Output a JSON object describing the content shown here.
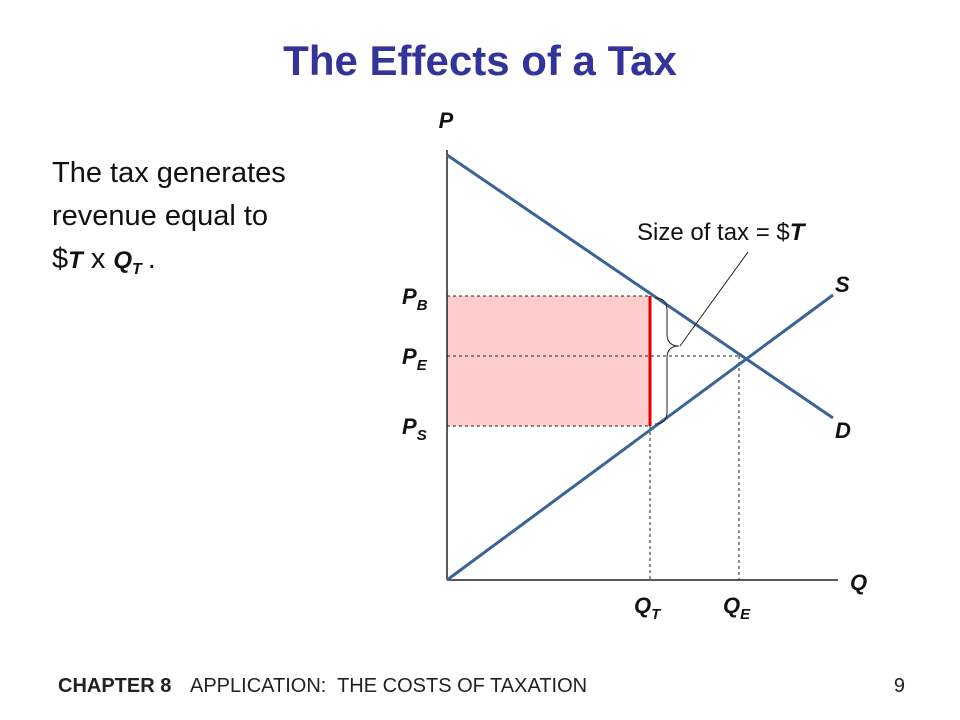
{
  "title": "The Effects of a Tax",
  "body": {
    "lines": [
      "The tax generates",
      "revenue equal to"
    ],
    "formula": {
      "currency": "$",
      "tax": "T",
      "times": "x",
      "quantity": "Q",
      "quantity_sub": "T",
      "end": "."
    }
  },
  "diagram": {
    "y_axis": "P",
    "x_axis": "Q",
    "supply": "S",
    "demand": "D",
    "price_labels": [
      {
        "main": "P",
        "sub": "B"
      },
      {
        "main": "P",
        "sub": "E"
      },
      {
        "main": "P",
        "sub": "S"
      }
    ],
    "quantity_labels": [
      {
        "main": "Q",
        "sub": "T"
      },
      {
        "main": "Q",
        "sub": "E"
      }
    ],
    "annotation": {
      "text": "Size of tax = $",
      "symbol": "T"
    }
  },
  "footer": {
    "chapter": "CHAPTER 8",
    "title": "APPLICATION:  THE COSTS OF TAXATION",
    "page": "9"
  }
}
